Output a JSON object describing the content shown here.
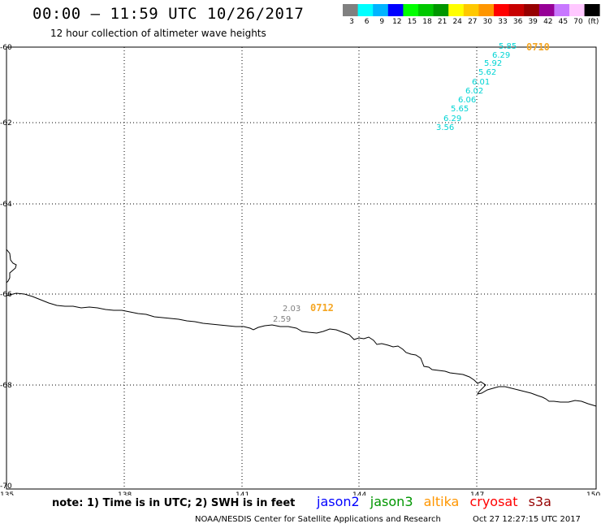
{
  "header": {
    "title": "00:00 – 11:59 UTC 10/26/2017",
    "subtitle": "12 hour collection of altimeter wave heights"
  },
  "colorbar": {
    "colors": [
      "#808080",
      "#00ffff",
      "#00b4ff",
      "#0000ff",
      "#00ff00",
      "#00c800",
      "#009600",
      "#ffff00",
      "#ffc800",
      "#ff9600",
      "#ff0000",
      "#c80000",
      "#960000",
      "#960096",
      "#c878ff",
      "#ffc8ff",
      "#000000"
    ],
    "labels": [
      "3",
      "6",
      "9",
      "12",
      "15",
      "18",
      "21",
      "24",
      "27",
      "30",
      "33",
      "36",
      "39",
      "42",
      "45",
      "70",
      "(ft)"
    ]
  },
  "axes": {
    "lat_labels": [
      "-60",
      "-62",
      "-64",
      "-66",
      "-68",
      "-70"
    ],
    "lon_labels": [
      "135",
      "138",
      "141",
      "144",
      "147",
      "150"
    ]
  },
  "tracks": [
    {
      "tag": "0710",
      "color": "#00d4d4",
      "values": [
        "5.85",
        "6.29",
        "5.92",
        "5.62",
        "6.01",
        "6.02",
        "6.06",
        "5.65",
        "6.29",
        "3.56"
      ]
    },
    {
      "tag": "0712",
      "color": "#808080",
      "values": [
        "2.03",
        "2.59"
      ]
    }
  ],
  "footer": {
    "note": "note:  1) Time is in UTC;  2) SWH is in feet",
    "legend": [
      {
        "name": "jason2",
        "color": "#0000ff"
      },
      {
        "name": "jason3",
        "color": "#009600"
      },
      {
        "name": "altika",
        "color": "#ff9600"
      },
      {
        "name": "cryosat",
        "color": "#ff0000"
      },
      {
        "name": "s3a",
        "color": "#960000"
      }
    ],
    "credit": "NOAA/NESDIS Center for Satellite Applications and Research",
    "timestamp": "Oct 27 12:27:15 UTC 2017"
  }
}
